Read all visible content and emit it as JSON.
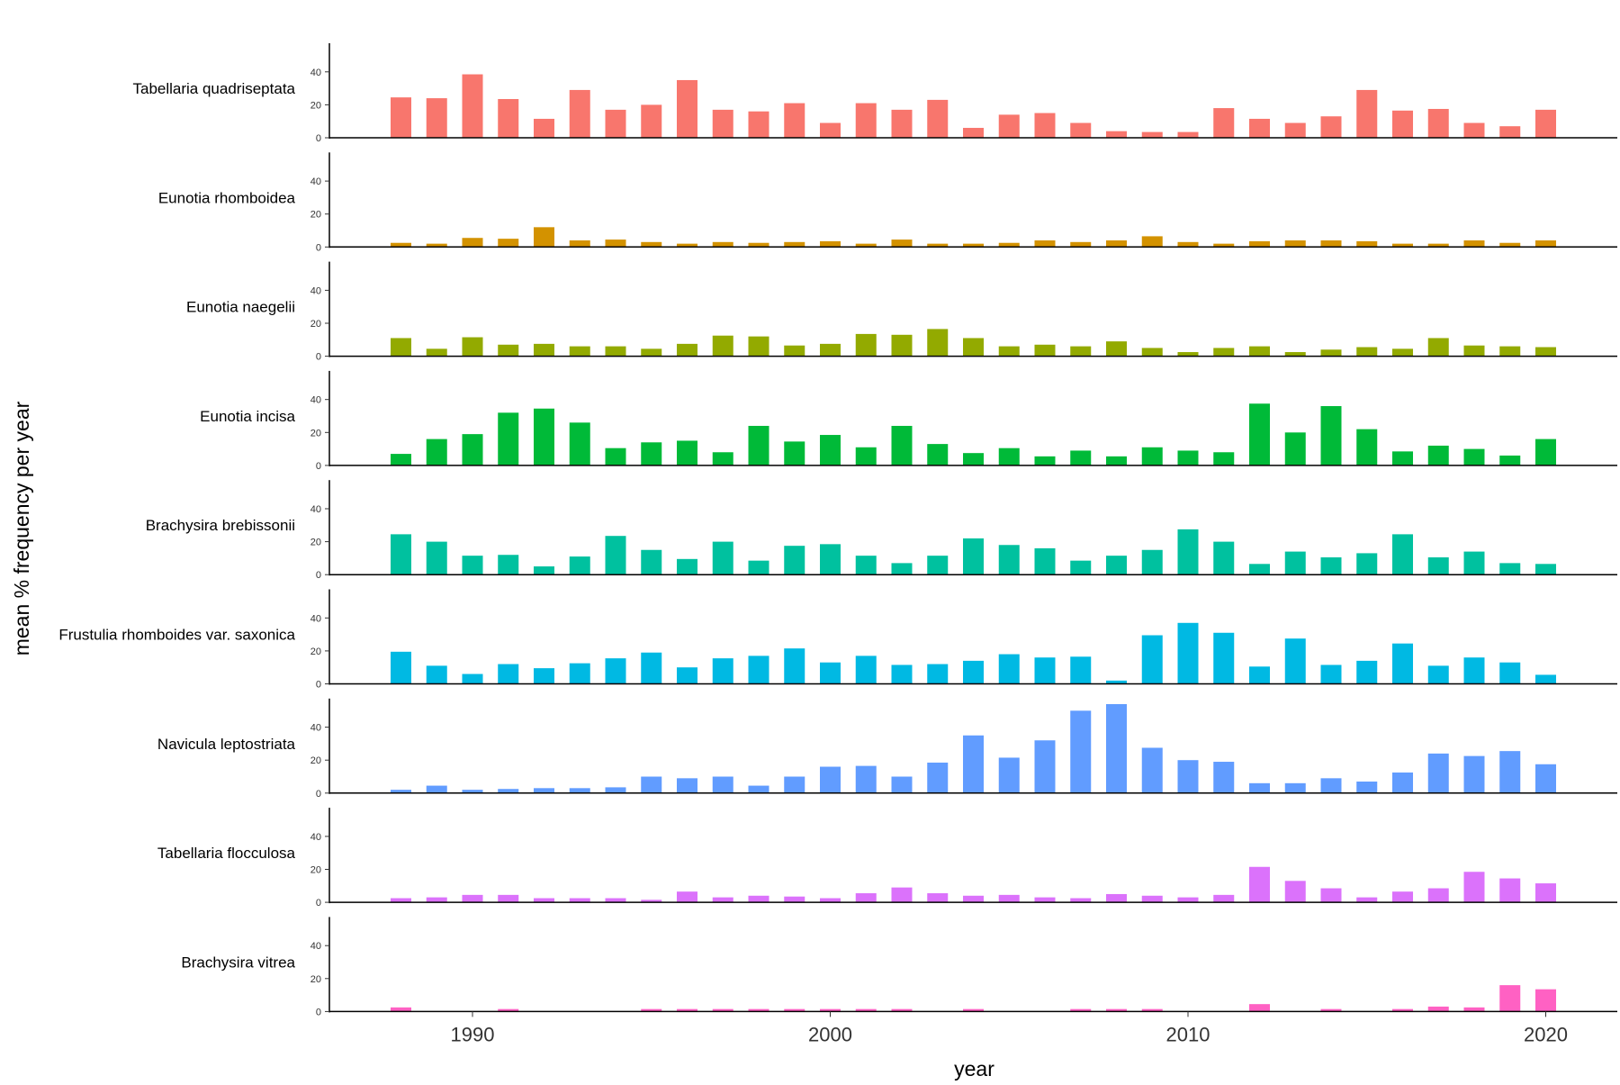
{
  "chart_data": {
    "type": "bar",
    "xlabel": "year",
    "ylabel": "mean % frequency per year",
    "x": [
      1988,
      1989,
      1990,
      1991,
      1992,
      1993,
      1994,
      1995,
      1996,
      1997,
      1998,
      1999,
      2000,
      2001,
      2002,
      2003,
      2004,
      2005,
      2006,
      2007,
      2008,
      2009,
      2010,
      2011,
      2012,
      2013,
      2014,
      2015,
      2016,
      2017,
      2018,
      2019,
      2020
    ],
    "x_ticks": [
      1990,
      2000,
      2010,
      2020
    ],
    "x_tick_labels": [
      "1990",
      "2000",
      "2010",
      "2020"
    ],
    "xlim": [
      1986,
      2022
    ],
    "y_ticks": [
      0,
      20,
      40
    ],
    "y_tick_labels": [
      "0",
      "20",
      "40"
    ],
    "ylim": [
      0,
      56
    ],
    "grid": false,
    "legend": "none",
    "series": [
      {
        "name": "Tabellaria quadriseptata",
        "color": "#F8766D",
        "values": [
          24.5,
          24,
          38.5,
          23.5,
          11.5,
          29,
          17,
          20,
          35,
          17,
          16,
          21,
          9,
          21,
          17,
          23,
          6,
          14,
          15,
          9,
          4,
          3.5,
          3.5,
          18,
          11.5,
          9,
          13,
          29,
          16.5,
          17.5,
          9,
          7,
          17
        ]
      },
      {
        "name": "Eunotia rhomboidea",
        "color": "#D39200",
        "values": [
          2.5,
          2,
          5.5,
          5,
          12,
          4,
          4.5,
          3,
          2,
          3,
          2.5,
          3,
          3.5,
          2,
          4.5,
          2,
          2,
          2.5,
          4,
          3,
          4,
          6.5,
          3,
          2,
          3.5,
          4,
          4,
          3.5,
          2,
          2,
          4,
          2.5,
          4
        ]
      },
      {
        "name": "Eunotia naegelii",
        "color": "#93AA00",
        "values": [
          11,
          4.5,
          11.5,
          7,
          7.5,
          6,
          6,
          4.5,
          7.5,
          12.5,
          12,
          6.5,
          7.5,
          13.5,
          13,
          16.5,
          11,
          6,
          7,
          6,
          9,
          5,
          2.5,
          5,
          6,
          2.5,
          4,
          5.5,
          4.5,
          11,
          6.5,
          6,
          5.5
        ]
      },
      {
        "name": "Eunotia incisa",
        "color": "#00BA38",
        "values": [
          7,
          16,
          19,
          32,
          34.5,
          26,
          10.5,
          14,
          15,
          8,
          24,
          14.5,
          18.5,
          11,
          24,
          13,
          7.5,
          10.5,
          5.5,
          9,
          5.5,
          11,
          9,
          8,
          37.5,
          20,
          36,
          22,
          8.5,
          12,
          10,
          6,
          16
        ]
      },
      {
        "name": "Brachysira brebissonii",
        "color": "#00C19F",
        "values": [
          24.5,
          20,
          11.5,
          12,
          5,
          11,
          23.5,
          15,
          9.5,
          20,
          8.5,
          17.5,
          18.5,
          11.5,
          7,
          11.5,
          22,
          18,
          16,
          8.5,
          11.5,
          15,
          27.5,
          20,
          6.5,
          14,
          10.5,
          13,
          24.5,
          10.5,
          14,
          7,
          6.5
        ]
      },
      {
        "name": "Frustulia rhomboides var. saxonica",
        "color": "#00B9E3",
        "values": [
          19.5,
          11,
          6,
          12,
          9.5,
          12.5,
          15.5,
          19,
          10,
          15.5,
          17,
          21.5,
          13,
          17,
          11.5,
          12,
          14,
          18,
          16,
          16.5,
          2,
          29.5,
          37,
          31,
          10.5,
          27.5,
          11.5,
          14,
          24.5,
          11,
          16,
          13,
          5.5
        ]
      },
      {
        "name": "Navicula leptostriata",
        "color": "#619CFF",
        "values": [
          2,
          4.5,
          2,
          2.5,
          3,
          3,
          3.5,
          10,
          9,
          10,
          4.5,
          10,
          16,
          16.5,
          10,
          18.5,
          35,
          21.5,
          32,
          50,
          54,
          27.5,
          20,
          19,
          6,
          6,
          9,
          7,
          12.5,
          24,
          22.5,
          25.5,
          17.5
        ]
      },
      {
        "name": "Tabellaria flocculosa",
        "color": "#DB72FB",
        "values": [
          2.5,
          3,
          4.5,
          4.5,
          2.5,
          2.5,
          2.5,
          1.5,
          6.5,
          3,
          4,
          3.5,
          2.5,
          5.5,
          9,
          5.5,
          4,
          4.5,
          3,
          2.5,
          5,
          4,
          3,
          4.5,
          21.5,
          13,
          8.5,
          3,
          6.5,
          8.5,
          18.5,
          14.5,
          11.5
        ]
      },
      {
        "name": "Brachysira vitrea",
        "color": "#FF61C3",
        "values": [
          2.5,
          0,
          0,
          1.5,
          0,
          0,
          0,
          1.5,
          1.5,
          1.5,
          1.5,
          1.5,
          1.5,
          1.5,
          1.5,
          0,
          1.5,
          0,
          0,
          1.5,
          1.5,
          1.5,
          0,
          0,
          4.5,
          0,
          1.5,
          0,
          1.5,
          3,
          2.5,
          16,
          13.5
        ]
      }
    ]
  }
}
